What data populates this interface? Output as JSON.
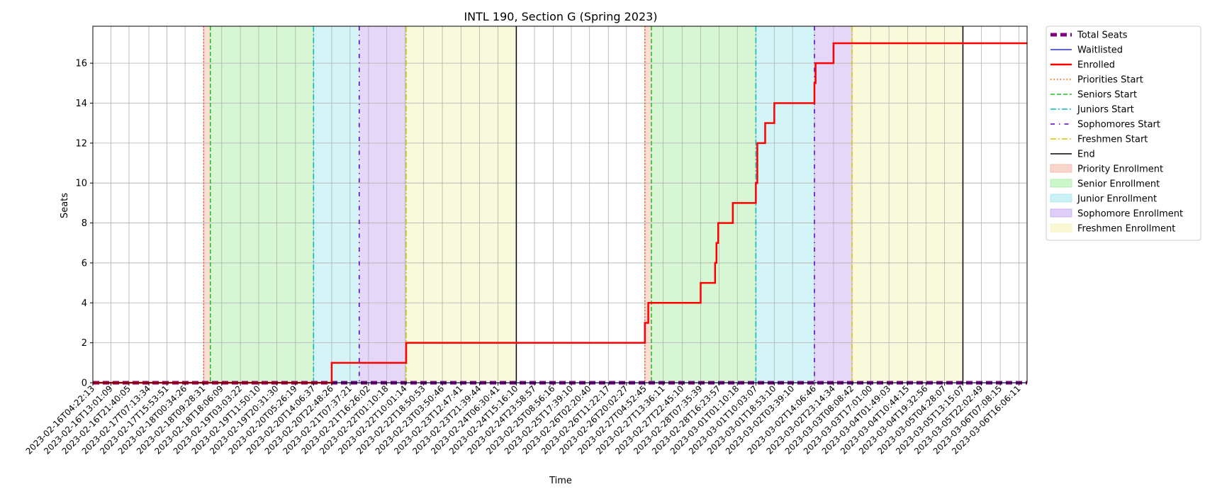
{
  "chart_data": {
    "type": "line",
    "title": "INTL 190, Section G (Spring 2023)",
    "xlabel": "Time",
    "ylabel": "Seats",
    "xlim": [
      "2023-02-16T04:22:13",
      "2023-03-06T20:00:00"
    ],
    "ylim": [
      0,
      17.85
    ],
    "y_ticks": [
      0,
      2,
      4,
      6,
      8,
      10,
      12,
      14,
      16
    ],
    "grid": true,
    "legend_position": "outside-right",
    "x_tick_labels": [
      "2023-02-16T04:22:13",
      "2023-02-16T13:01:09",
      "2023-02-16T21:40:05",
      "2023-02-17T07:13:34",
      "2023-02-17T15:53:51",
      "2023-02-18T00:34:26",
      "2023-02-18T09:28:31",
      "2023-02-18T18:06:09",
      "2023-02-19T03:03:22",
      "2023-02-19T11:50:10",
      "2023-02-19T20:31:30",
      "2023-02-20T05:26:19",
      "2023-02-20T14:06:37",
      "2023-02-20T22:48:26",
      "2023-02-21T07:37:21",
      "2023-02-21T16:26:02",
      "2023-02-22T01:10:18",
      "2023-02-22T10:01:14",
      "2023-02-22T18:50:53",
      "2023-02-23T03:50:46",
      "2023-02-23T12:47:41",
      "2023-02-23T21:39:44",
      "2023-02-24T06:30:41",
      "2023-02-24T15:16:10",
      "2023-02-24T23:58:57",
      "2023-02-25T08:56:16",
      "2023-02-25T17:39:10",
      "2023-02-26T02:20:40",
      "2023-02-26T11:22:17",
      "2023-02-26T20:02:27",
      "2023-02-27T04:52:45",
      "2023-02-27T13:36:11",
      "2023-02-27T22:45:10",
      "2023-02-28T07:35:39",
      "2023-02-28T16:23:57",
      "2023-03-01T01:10:18",
      "2023-03-01T10:03:07",
      "2023-03-01T18:53:10",
      "2023-03-02T03:39:10",
      "2023-03-02T14:06:46",
      "2023-03-02T23:14:34",
      "2023-03-03T08:08:42",
      "2023-03-03T17:01:00",
      "2023-03-04T01:49:03",
      "2023-03-04T10:44:15",
      "2023-03-04T19:32:56",
      "2023-03-05T04:28:07",
      "2023-03-05T13:15:07",
      "2023-03-05T22:02:49",
      "2023-03-06T07:08:15",
      "2023-03-06T16:06:11"
    ],
    "series": [
      {
        "name": "Total Seats",
        "color": "#800080",
        "style": "dashed-thick",
        "points": [
          [
            "2023-02-16T04:22:13",
            0
          ],
          [
            "2023-03-06T20:00:00",
            0
          ]
        ]
      },
      {
        "name": "Waitlisted",
        "color": "#0000ff",
        "style": "solid-thin",
        "points": [
          [
            "2023-02-16T04:22:13",
            0
          ],
          [
            "2023-03-06T20:00:00",
            0
          ]
        ]
      },
      {
        "name": "Enrolled",
        "color": "#ff0000",
        "style": "step",
        "points": [
          [
            "2023-02-16T04:22:13",
            0
          ],
          [
            "2023-02-20T22:48:26",
            1
          ],
          [
            "2023-02-22T10:30:00",
            2
          ],
          [
            "2023-02-27T04:52:45",
            3
          ],
          [
            "2023-02-27T06:30:00",
            4
          ],
          [
            "2023-02-28T07:35:39",
            5
          ],
          [
            "2023-02-28T14:30:00",
            6
          ],
          [
            "2023-02-28T15:10:00",
            7
          ],
          [
            "2023-02-28T16:00:00",
            8
          ],
          [
            "2023-02-28T23:00:00",
            9
          ],
          [
            "2023-03-01T10:03:07",
            10
          ],
          [
            "2023-03-01T10:45:00",
            12
          ],
          [
            "2023-03-01T14:30:00",
            13
          ],
          [
            "2023-03-01T18:53:10",
            14
          ],
          [
            "2023-03-02T14:06:46",
            15
          ],
          [
            "2023-03-02T14:40:00",
            16
          ],
          [
            "2023-03-02T23:14:34",
            17
          ],
          [
            "2023-03-06T20:00:00",
            17
          ]
        ]
      }
    ],
    "events": [
      {
        "name": "Priorities Start",
        "color": "#ff4500",
        "style": "dotted",
        "times": [
          "2023-02-18T09:28:31",
          "2023-02-27T04:52:45"
        ]
      },
      {
        "name": "Seniors Start",
        "color": "#22bb22",
        "style": "dashed",
        "times": [
          "2023-02-18T12:40:00",
          "2023-02-27T08:00:00"
        ]
      },
      {
        "name": "Juniors Start",
        "color": "#00bcbc",
        "style": "dashdot",
        "times": [
          "2023-02-20T14:06:37",
          "2023-03-01T10:03:07"
        ]
      },
      {
        "name": "Sophomores Start",
        "color": "#5500cc",
        "style": "loosedashdot",
        "times": [
          "2023-02-21T12:00:00",
          "2023-03-02T14:06:46"
        ]
      },
      {
        "name": "Freshmen Start",
        "color": "#d4c400",
        "style": "dashdot",
        "times": [
          "2023-02-22T10:30:00",
          "2023-03-03T08:08:42"
        ]
      },
      {
        "name": "End",
        "color": "#000000",
        "style": "solid",
        "times": [
          "2023-02-24T15:16:10",
          "2023-03-05T13:15:07"
        ]
      }
    ],
    "periods": [
      {
        "name": "Priority Enrollment",
        "color": "#f4b5a0",
        "spans": [
          [
            "2023-02-18T09:28:31",
            "2023-02-18T12:40:00"
          ],
          [
            "2023-02-27T04:52:45",
            "2023-02-27T08:00:00"
          ]
        ]
      },
      {
        "name": "Senior Enrollment",
        "color": "#a6eea0",
        "spans": [
          [
            "2023-02-18T12:40:00",
            "2023-02-20T14:06:37"
          ],
          [
            "2023-02-27T08:00:00",
            "2023-03-01T10:03:07"
          ]
        ]
      },
      {
        "name": "Junior Enrollment",
        "color": "#a0e6ee",
        "spans": [
          [
            "2023-02-20T14:06:37",
            "2023-02-21T12:00:00"
          ],
          [
            "2023-03-01T10:03:07",
            "2023-03-02T14:06:46"
          ]
        ]
      },
      {
        "name": "Sophomore Enrollment",
        "color": "#c4a6f0",
        "spans": [
          [
            "2023-02-21T12:00:00",
            "2023-02-22T10:30:00"
          ],
          [
            "2023-03-02T14:06:46",
            "2023-03-03T08:08:42"
          ]
        ]
      },
      {
        "name": "Freshmen Enrollment",
        "color": "#f2f2b0",
        "spans": [
          [
            "2023-02-22T10:30:00",
            "2023-02-24T15:16:10"
          ],
          [
            "2023-03-03T08:08:42",
            "2023-03-05T13:15:07"
          ]
        ]
      }
    ],
    "legend": [
      {
        "label": "Total Seats",
        "kind": "line",
        "color": "#800080",
        "style": "dashed-thick"
      },
      {
        "label": "Waitlisted",
        "kind": "line",
        "color": "#0000ff",
        "style": "solid-thin"
      },
      {
        "label": "Enrolled",
        "kind": "line",
        "color": "#ff0000",
        "style": "solid-thick"
      },
      {
        "label": "Priorities Start",
        "kind": "line",
        "color": "#ff4500",
        "style": "dotted"
      },
      {
        "label": "Seniors Start",
        "kind": "line",
        "color": "#22bb22",
        "style": "dashed"
      },
      {
        "label": "Juniors Start",
        "kind": "line",
        "color": "#00bcbc",
        "style": "dashdot"
      },
      {
        "label": "Sophomores Start",
        "kind": "line",
        "color": "#5500cc",
        "style": "loosedashdot"
      },
      {
        "label": "Freshmen Start",
        "kind": "line",
        "color": "#d4c400",
        "style": "dashdot"
      },
      {
        "label": "End",
        "kind": "line",
        "color": "#000000",
        "style": "solid"
      },
      {
        "label": "Priority Enrollment",
        "kind": "patch",
        "color": "#f4b5a0"
      },
      {
        "label": "Senior Enrollment",
        "kind": "patch",
        "color": "#a6eea0"
      },
      {
        "label": "Junior Enrollment",
        "kind": "patch",
        "color": "#a0e6ee"
      },
      {
        "label": "Sophomore Enrollment",
        "kind": "patch",
        "color": "#c4a6f0"
      },
      {
        "label": "Freshmen Enrollment",
        "kind": "patch",
        "color": "#f2f2b0"
      }
    ]
  }
}
